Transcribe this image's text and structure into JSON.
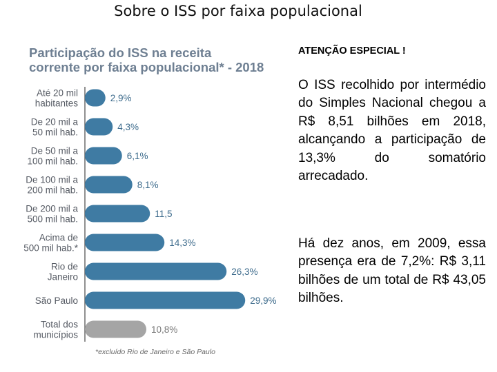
{
  "header": {
    "title": "Sobre o ISS por faixa populacional"
  },
  "chart_data": {
    "type": "bar",
    "orientation": "horizontal",
    "title": "Participação do ISS na receita corrente por faixa populacional* - 2018",
    "title_lines": [
      "Participação do ISS na receita",
      "corrente por faixa populacional* - 2018"
    ],
    "categories": [
      [
        "Até 20 mil",
        "habitantes"
      ],
      [
        "De 20 mil a",
        "50 mil hab."
      ],
      [
        "De 50 mil a",
        "100 mil hab."
      ],
      [
        "De 100 mil a",
        "200 mil hab."
      ],
      [
        "De 200 mil a",
        "500 mil hab."
      ],
      [
        "Acima de",
        "500 mil hab.*"
      ],
      [
        "Rio de",
        "Janeiro"
      ],
      [
        "São Paulo"
      ],
      [
        "Total dos",
        "municípios"
      ]
    ],
    "values": [
      2.9,
      4.3,
      6.1,
      8.1,
      11.5,
      14.3,
      26.3,
      29.9,
      10.8
    ],
    "value_labels": [
      "2,9%",
      "4,3%",
      "6,1%",
      "8,1%",
      "11,5",
      "14,3%",
      "26,3%",
      "29,9%",
      "10,8%"
    ],
    "unit": "%",
    "footnote": "*excluído Rio de Janeiro e São Paulo",
    "colors": {
      "bar": "#3f7ba3",
      "total_bar": "#a5a5a5",
      "value_text": "#3d6b8c",
      "axis": "#555555",
      "title": "#6e7f92"
    }
  },
  "side_panel": {
    "attention": "ATENÇÃO ESPECIAL !",
    "paragraph1": "O ISS recolhido por intermédio do Simples Nacional chegou a R$ 8,51 bilhões em 2018, alcançando a participação de 13,3% do somatório arrecadado.",
    "paragraph2": "Há dez anos, em 2009, essa presença era de 7,2%: R$ 3,11 bilhões de um total de R$ 43,05 bilhões."
  }
}
